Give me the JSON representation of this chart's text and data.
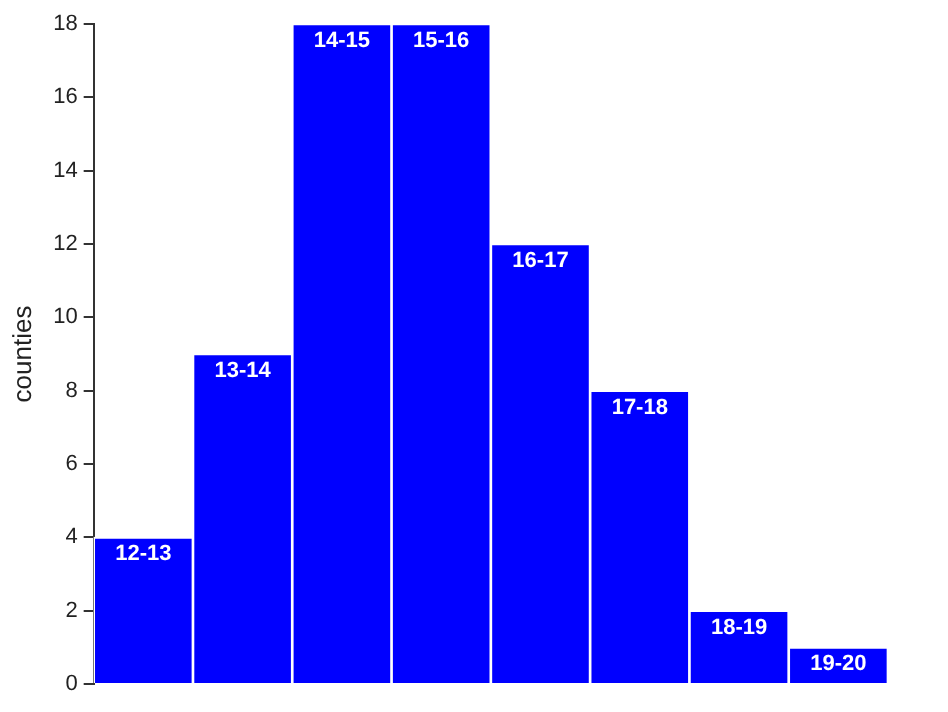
{
  "chart_data": {
    "type": "bar",
    "ylabel": "counties",
    "categories": [
      "12-13",
      "13-14",
      "14-15",
      "15-16",
      "16-17",
      "17-18",
      "18-19",
      "19-20"
    ],
    "values": [
      4,
      9,
      18,
      18,
      12,
      8,
      2,
      1
    ],
    "color": "#0000ff",
    "ylim": [
      0,
      18
    ],
    "yticks": [
      0,
      2,
      4,
      6,
      8,
      10,
      12,
      14,
      16,
      18
    ],
    "grid": false,
    "legend": false
  }
}
